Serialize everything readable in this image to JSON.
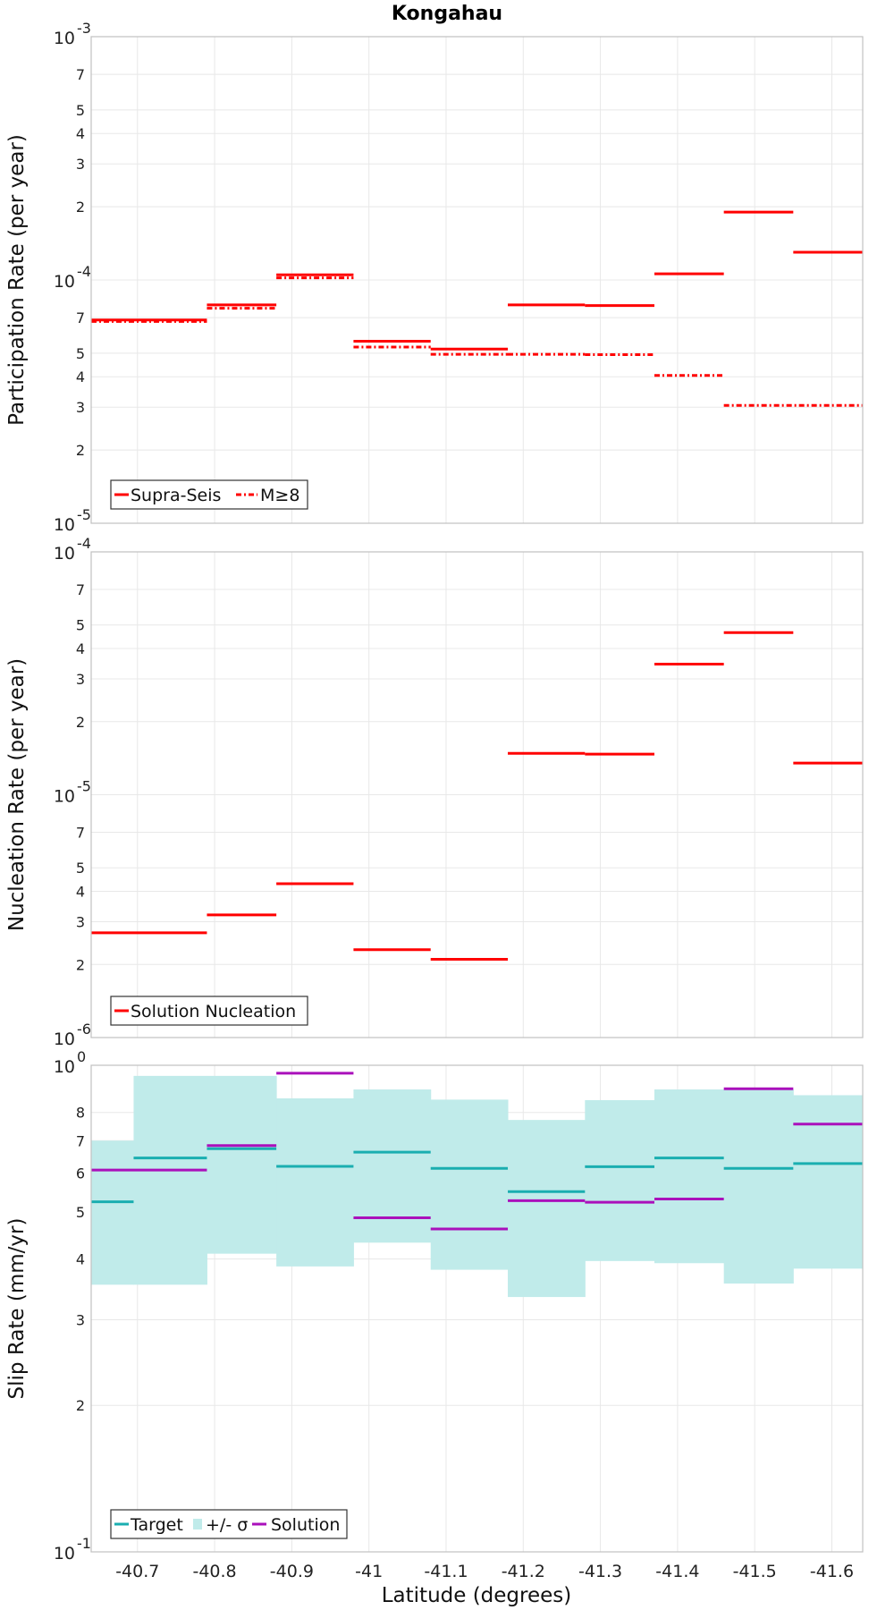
{
  "title": "Kongahau",
  "x_axis": {
    "label": "Latitude (degrees)",
    "lim": [
      -40.64,
      -41.64
    ],
    "ticks": [
      -40.7,
      -40.8,
      -40.9,
      -41.0,
      -41.1,
      -41.2,
      -41.3,
      -41.4,
      -41.5,
      -41.6
    ],
    "tick_labels": [
      "-40.7",
      "-40.8",
      "-40.9",
      "-41",
      "-41.1",
      "-41.2",
      "-41.3",
      "-41.4",
      "-41.5",
      "-41.6"
    ]
  },
  "colors": {
    "red": "#ff0000",
    "target": "#1aaeb0",
    "band": "#c0ebea",
    "solution": "#aa10bb",
    "grid": "#e8e8e8",
    "frame": "#c0c0c0"
  },
  "chart_data": [
    {
      "type": "line",
      "panel": "participation",
      "ylabel": "Participation Rate (per year)",
      "yscale": "log",
      "ylim": [
        1e-05,
        0.001
      ],
      "grid": true,
      "legend_position": "bottom-left",
      "y_major_ticks": [
        {
          "value": 0.001,
          "base": "10",
          "exp": "-3"
        },
        {
          "value": 0.0001,
          "base": "10",
          "exp": "-4"
        },
        {
          "value": 1e-05,
          "base": "10",
          "exp": "-5"
        }
      ],
      "y_minor_ticks": [
        {
          "value": 0.0007,
          "label": "7"
        },
        {
          "value": 0.0005,
          "label": "5"
        },
        {
          "value": 0.0004,
          "label": "4"
        },
        {
          "value": 0.0003,
          "label": "3"
        },
        {
          "value": 0.0002,
          "label": "2"
        },
        {
          "value": 7e-05,
          "label": "7"
        },
        {
          "value": 5e-05,
          "label": "5"
        },
        {
          "value": 4e-05,
          "label": "4"
        },
        {
          "value": 3e-05,
          "label": "3"
        },
        {
          "value": 2e-05,
          "label": "2"
        }
      ],
      "series": [
        {
          "name": "Supra-Seis",
          "style": "solid",
          "color": "#ff0000",
          "segments": [
            {
              "x0": -40.64,
              "x1": -40.79,
              "y": 6.85e-05
            },
            {
              "x0": -40.79,
              "x1": -40.88,
              "y": 7.9e-05
            },
            {
              "x0": -40.88,
              "x1": -40.98,
              "y": 0.000105
            },
            {
              "x0": -40.98,
              "x1": -41.08,
              "y": 5.6e-05
            },
            {
              "x0": -41.08,
              "x1": -41.18,
              "y": 5.2e-05
            },
            {
              "x0": -41.18,
              "x1": -41.28,
              "y": 7.9e-05
            },
            {
              "x0": -41.28,
              "x1": -41.37,
              "y": 7.85e-05
            },
            {
              "x0": -41.37,
              "x1": -41.46,
              "y": 0.000106
            },
            {
              "x0": -41.46,
              "x1": -41.55,
              "y": 0.00019
            },
            {
              "x0": -41.55,
              "x1": -41.64,
              "y": 0.00013
            }
          ]
        },
        {
          "name": "M≥8",
          "style": "dashdot",
          "color": "#ff0000",
          "segments": [
            {
              "x0": -40.64,
              "x1": -40.79,
              "y": 6.75e-05
            },
            {
              "x0": -40.79,
              "x1": -40.88,
              "y": 7.65e-05
            },
            {
              "x0": -40.88,
              "x1": -40.98,
              "y": 0.000102
            },
            {
              "x0": -40.98,
              "x1": -41.08,
              "y": 5.3e-05
            },
            {
              "x0": -41.08,
              "x1": -41.18,
              "y": 4.95e-05
            },
            {
              "x0": -41.18,
              "x1": -41.28,
              "y": 4.95e-05
            },
            {
              "x0": -41.28,
              "x1": -41.37,
              "y": 4.93e-05
            },
            {
              "x0": -41.37,
              "x1": -41.46,
              "y": 4.05e-05
            },
            {
              "x0": -41.46,
              "x1": -41.64,
              "y": 3.05e-05
            }
          ]
        }
      ]
    },
    {
      "type": "line",
      "panel": "nucleation",
      "ylabel": "Nucleation Rate (per year)",
      "yscale": "log",
      "ylim": [
        1e-06,
        0.0001
      ],
      "grid": true,
      "legend_position": "bottom-left",
      "y_major_ticks": [
        {
          "value": 0.0001,
          "base": "10",
          "exp": "-4"
        },
        {
          "value": 1e-05,
          "base": "10",
          "exp": "-5"
        },
        {
          "value": 1e-06,
          "base": "10",
          "exp": "-6"
        }
      ],
      "y_minor_ticks": [
        {
          "value": 7e-05,
          "label": "7"
        },
        {
          "value": 5e-05,
          "label": "5"
        },
        {
          "value": 4e-05,
          "label": "4"
        },
        {
          "value": 3e-05,
          "label": "3"
        },
        {
          "value": 2e-05,
          "label": "2"
        },
        {
          "value": 7e-06,
          "label": "7"
        },
        {
          "value": 5e-06,
          "label": "5"
        },
        {
          "value": 4e-06,
          "label": "4"
        },
        {
          "value": 3e-06,
          "label": "3"
        },
        {
          "value": 2e-06,
          "label": "2"
        }
      ],
      "series": [
        {
          "name": "Solution Nucleation",
          "style": "solid",
          "color": "#ff0000",
          "segments": [
            {
              "x0": -40.64,
              "x1": -40.79,
              "y": 2.7e-06
            },
            {
              "x0": -40.79,
              "x1": -40.88,
              "y": 3.2e-06
            },
            {
              "x0": -40.88,
              "x1": -40.98,
              "y": 4.3e-06
            },
            {
              "x0": -40.98,
              "x1": -41.08,
              "y": 2.3e-06
            },
            {
              "x0": -41.08,
              "x1": -41.18,
              "y": 2.1e-06
            },
            {
              "x0": -41.18,
              "x1": -41.28,
              "y": 1.48e-05
            },
            {
              "x0": -41.28,
              "x1": -41.37,
              "y": 1.47e-05
            },
            {
              "x0": -41.37,
              "x1": -41.46,
              "y": 3.45e-05
            },
            {
              "x0": -41.46,
              "x1": -41.55,
              "y": 4.65e-05
            },
            {
              "x0": -41.55,
              "x1": -41.64,
              "y": 1.35e-05
            }
          ]
        }
      ]
    },
    {
      "type": "line",
      "panel": "slip",
      "ylabel": "Slip Rate (mm/yr)",
      "yscale": "log",
      "ylim": [
        0.1,
        1.0
      ],
      "grid": true,
      "legend_position": "bottom-left",
      "y_major_ticks": [
        {
          "value": 1.0,
          "base": "10",
          "exp": "0"
        },
        {
          "value": 0.1,
          "base": "10",
          "exp": "-1"
        }
      ],
      "y_minor_ticks": [
        {
          "value": 0.8,
          "label": "8"
        },
        {
          "value": 0.7,
          "label": "7"
        },
        {
          "value": 0.6,
          "label": "6"
        },
        {
          "value": 0.5,
          "label": "5"
        },
        {
          "value": 0.4,
          "label": "4"
        },
        {
          "value": 0.3,
          "label": "3"
        },
        {
          "value": 0.2,
          "label": "2"
        }
      ],
      "legend": [
        "Target",
        "+/- σ",
        "Solution"
      ],
      "band": {
        "name": "+/- σ",
        "segments": [
          {
            "x0": -40.64,
            "x1": -40.695,
            "low": 0.354,
            "high": 0.7
          },
          {
            "x0": -40.695,
            "x1": -40.79,
            "low": 0.354,
            "high": 0.951
          },
          {
            "x0": -40.79,
            "x1": -40.88,
            "low": 0.41,
            "high": 0.951
          },
          {
            "x0": -40.88,
            "x1": -40.98,
            "low": 0.386,
            "high": 0.855
          },
          {
            "x0": -40.98,
            "x1": -41.08,
            "low": 0.432,
            "high": 0.892
          },
          {
            "x0": -41.08,
            "x1": -41.18,
            "low": 0.38,
            "high": 0.85
          },
          {
            "x0": -41.18,
            "x1": -41.28,
            "low": 0.334,
            "high": 0.772
          },
          {
            "x0": -41.28,
            "x1": -41.37,
            "low": 0.396,
            "high": 0.848
          },
          {
            "x0": -41.37,
            "x1": -41.46,
            "low": 0.392,
            "high": 0.892
          },
          {
            "x0": -41.46,
            "x1": -41.55,
            "low": 0.356,
            "high": 0.892
          },
          {
            "x0": -41.55,
            "x1": -41.64,
            "low": 0.382,
            "high": 0.868
          }
        ]
      },
      "series": [
        {
          "name": "Target",
          "style": "solid",
          "color": "#1aaeb0",
          "segments": [
            {
              "x0": -40.64,
              "x1": -40.695,
              "y": 0.524
            },
            {
              "x0": -40.695,
              "x1": -40.79,
              "y": 0.645
            },
            {
              "x0": -40.79,
              "x1": -40.88,
              "y": 0.674
            },
            {
              "x0": -40.88,
              "x1": -40.98,
              "y": 0.62
            },
            {
              "x0": -40.98,
              "x1": -41.08,
              "y": 0.663
            },
            {
              "x0": -41.08,
              "x1": -41.18,
              "y": 0.614
            },
            {
              "x0": -41.18,
              "x1": -41.28,
              "y": 0.55
            },
            {
              "x0": -41.28,
              "x1": -41.37,
              "y": 0.619
            },
            {
              "x0": -41.37,
              "x1": -41.46,
              "y": 0.645
            },
            {
              "x0": -41.46,
              "x1": -41.55,
              "y": 0.614
            },
            {
              "x0": -41.55,
              "x1": -41.64,
              "y": 0.628
            }
          ]
        },
        {
          "name": "Solution",
          "style": "solid",
          "color": "#aa10bb",
          "segments": [
            {
              "x0": -40.64,
              "x1": -40.79,
              "y": 0.609
            },
            {
              "x0": -40.79,
              "x1": -40.88,
              "y": 0.684
            },
            {
              "x0": -40.88,
              "x1": -40.98,
              "y": 0.963
            },
            {
              "x0": -40.98,
              "x1": -41.08,
              "y": 0.486
            },
            {
              "x0": -41.08,
              "x1": -41.18,
              "y": 0.461
            },
            {
              "x0": -41.18,
              "x1": -41.28,
              "y": 0.527
            },
            {
              "x0": -41.28,
              "x1": -41.37,
              "y": 0.523
            },
            {
              "x0": -41.37,
              "x1": -41.46,
              "y": 0.531
            },
            {
              "x0": -41.46,
              "x1": -41.55,
              "y": 0.895
            },
            {
              "x0": -41.55,
              "x1": -41.64,
              "y": 0.757
            }
          ]
        }
      ]
    }
  ]
}
